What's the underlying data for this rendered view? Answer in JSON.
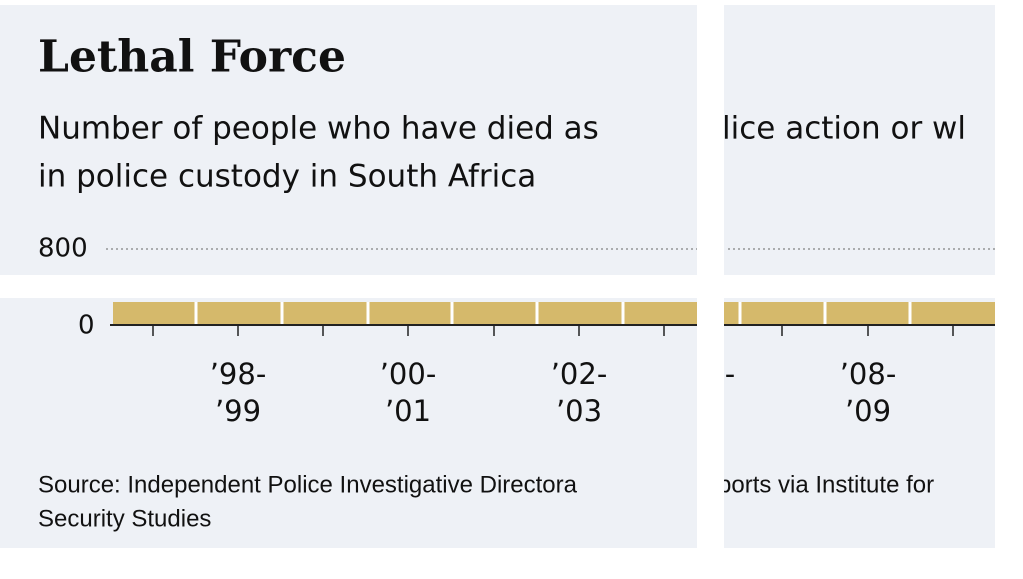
{
  "title": "Lethal Force",
  "subtitle": {
    "left": [
      "Number of people who have died as",
      "in police custody in South Africa"
    ],
    "right": [
      "lice action or wl"
    ]
  },
  "y_axis": {
    "top": "800",
    "bottom": "0"
  },
  "x_labels": {
    "left": [
      [
        "’98-",
        "’99"
      ],
      [
        "’00-",
        "’01"
      ],
      [
        "’02-",
        "’03"
      ]
    ],
    "right": [
      [
        "-"
      ],
      [
        "’08-",
        "’09"
      ]
    ]
  },
  "source": {
    "left": [
      "Source: Independent Police Investigative Directora",
      "Security Studies"
    ],
    "right": [
      "ports via Institute for"
    ]
  }
}
